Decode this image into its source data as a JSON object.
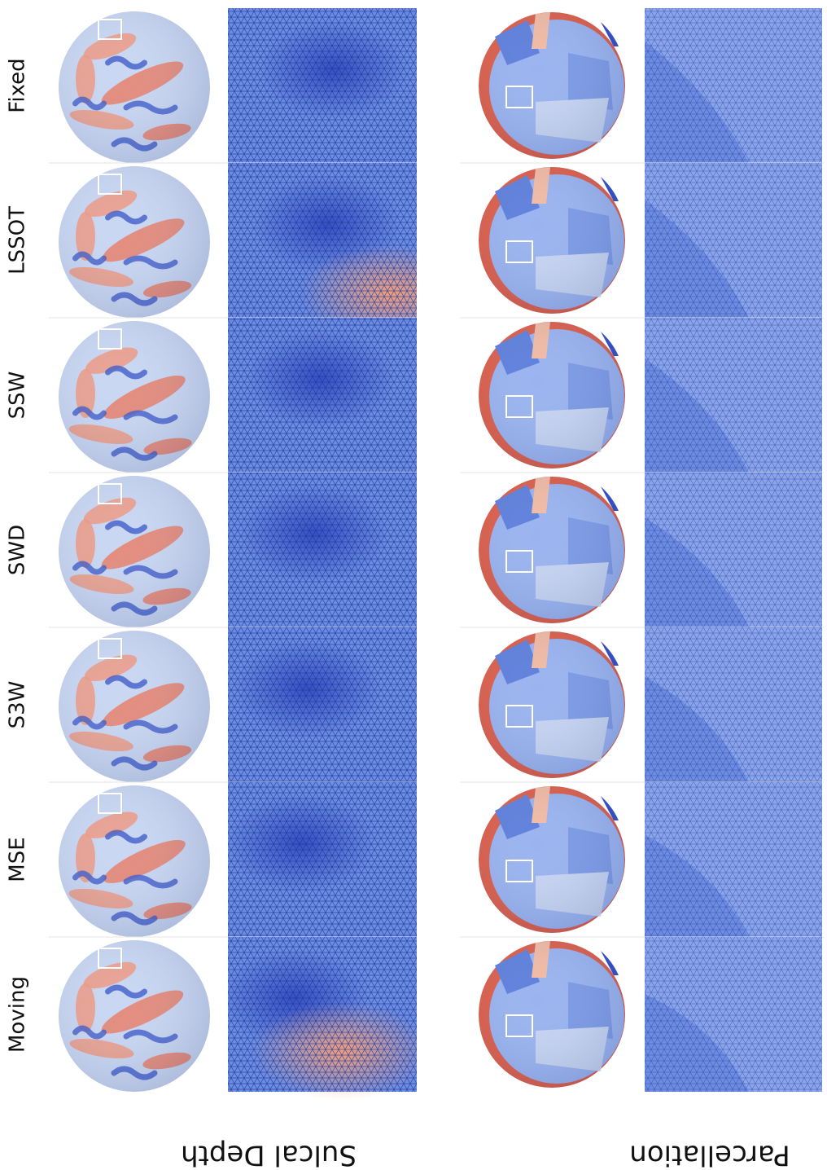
{
  "methods": [
    "Fixed",
    "LSSOT",
    "SSW",
    "SWD",
    "S3W",
    "MSE",
    "Moving"
  ],
  "columns": [
    "Sulcal Depth",
    "Parcellation"
  ]
}
